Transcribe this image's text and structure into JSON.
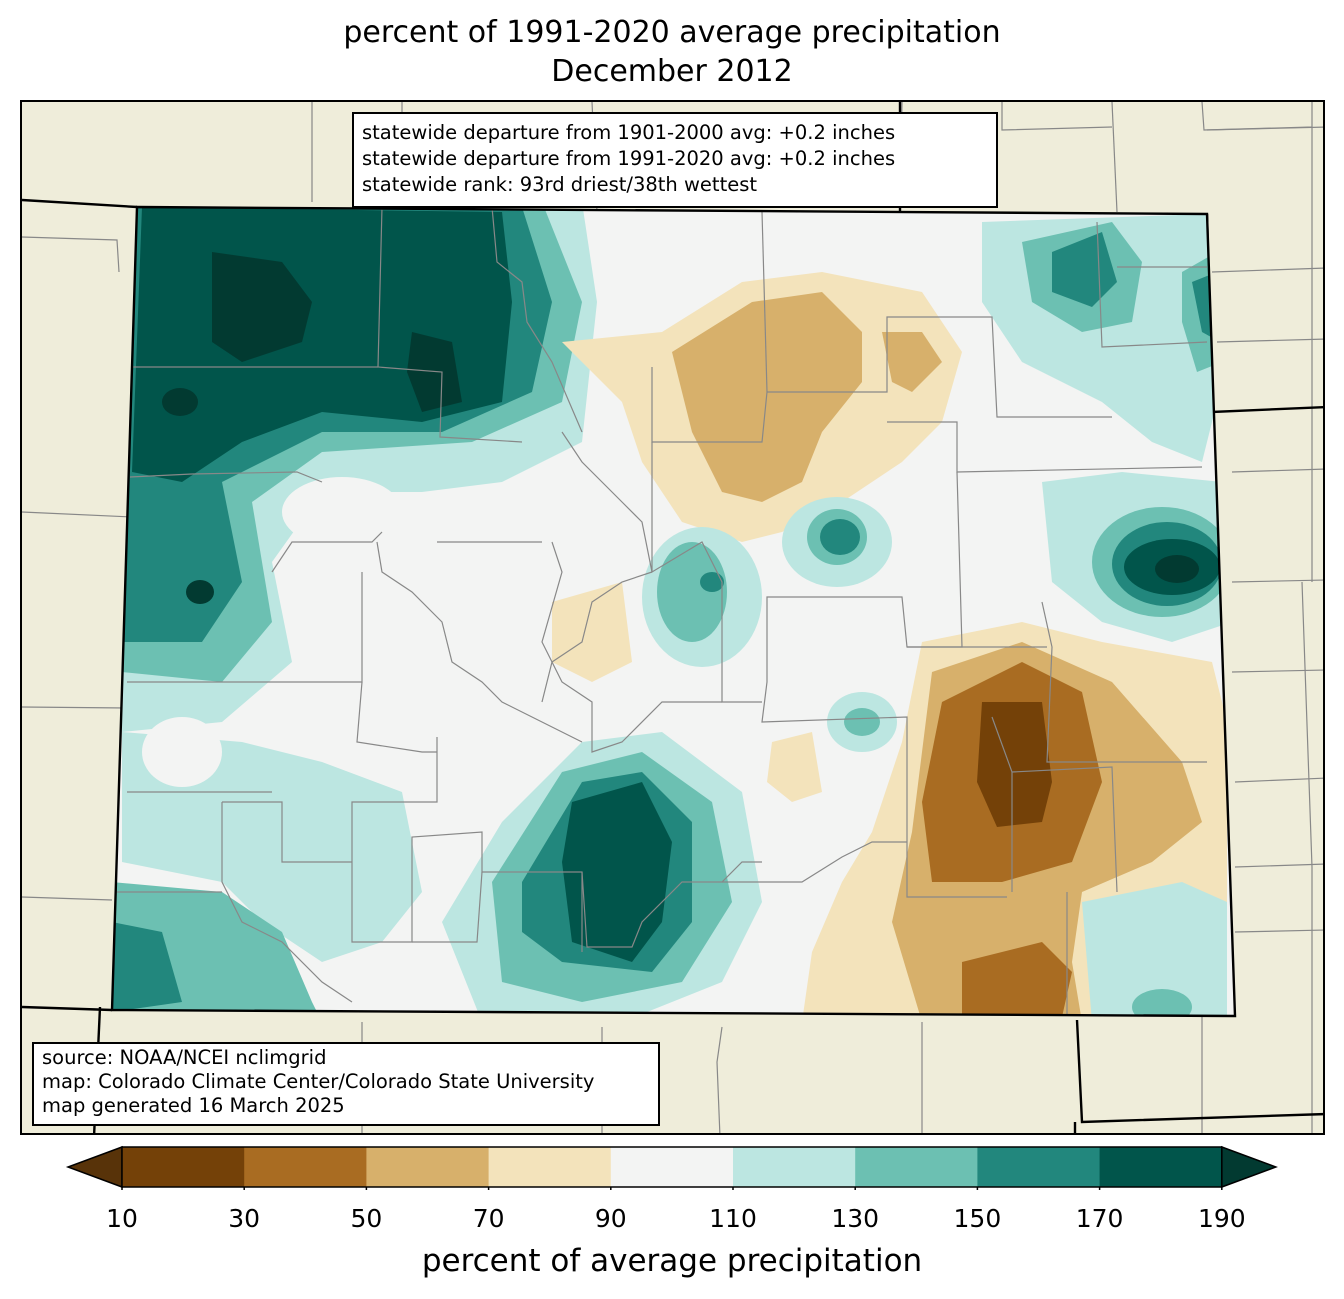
{
  "title": {
    "line1": "percent of 1991-2020 average precipitation",
    "line2": "December 2012"
  },
  "stats_box": {
    "line1": "statewide departure from 1901-2000 avg: +0.2 inches",
    "line2": "statewide departure from 1991-2020 avg: +0.2 inches",
    "line3": "statewide rank: 93rd driest/38th wettest"
  },
  "source_box": {
    "line1": "source: NOAA/NCEI nclimgrid",
    "line2": "map: Colorado Climate Center/Colorado State University",
    "line3": "map generated 16 March 2025"
  },
  "colorbar": {
    "label": "percent of average precipitation",
    "ticks": [
      "10",
      "30",
      "50",
      "70",
      "90",
      "110",
      "130",
      "150",
      "170",
      "190"
    ],
    "colors": [
      "#744108",
      "#a96c22",
      "#d7b06b",
      "#f3e3bb",
      "#f3f4f3",
      "#bce6e1",
      "#6cc0b2",
      "#22877d",
      "#01554b"
    ],
    "under_color": "#583309",
    "over_color": "#023a31"
  },
  "map": {
    "background_color": "#efedda",
    "border_color": "#000000",
    "county_line_color": "#888888"
  }
}
